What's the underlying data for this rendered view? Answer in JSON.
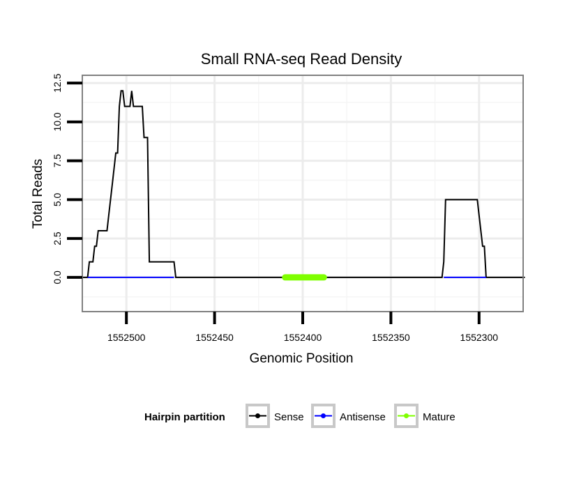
{
  "chart_data": {
    "type": "line",
    "title": "Small RNA-seq Read Density",
    "xlabel": "Genomic Position",
    "ylabel": "Total Reads",
    "xlim": [
      1552525,
      1552275
    ],
    "x_reversed": true,
    "ylim": [
      -2.2,
      13
    ],
    "x_ticks": [
      1552500,
      1552450,
      1552400,
      1552350,
      1552300
    ],
    "x_tick_labels": [
      "1552500",
      "1552450",
      "1552400",
      "1552350",
      "1552300"
    ],
    "y_ticks": [
      0,
      2.5,
      5,
      7.5,
      10,
      12.5
    ],
    "y_tick_labels": [
      "0.0",
      "2.5",
      "5.0",
      "7.5",
      "10.0",
      "12.5"
    ],
    "grid": true,
    "legend": {
      "title": "Hairpin partition",
      "position": "bottom",
      "entries": [
        {
          "label": "Sense",
          "color": "#000000"
        },
        {
          "label": "Antisense",
          "color": "#0000ff"
        },
        {
          "label": "Mature",
          "color": "#7fff00"
        }
      ]
    },
    "series": [
      {
        "name": "Sense",
        "color": "#000000",
        "x": [
          1552525,
          1552522,
          1552521,
          1552519,
          1552518,
          1552517,
          1552516,
          1552515,
          1552511,
          1552510,
          1552508,
          1552507,
          1552506,
          1552505,
          1552504,
          1552503,
          1552502,
          1552501,
          1552500,
          1552499,
          1552498,
          1552497,
          1552496,
          1552495,
          1552494,
          1552493,
          1552492,
          1552491,
          1552490,
          1552488,
          1552487,
          1552486,
          1552485,
          1552484,
          1552473,
          1552472,
          1552412,
          1552388,
          1552321,
          1552320,
          1552319,
          1552301,
          1552300,
          1552298,
          1552297,
          1552296,
          1552274
        ],
        "values": [
          0,
          0,
          1,
          1,
          2,
          2,
          3,
          3,
          3,
          4,
          6,
          7,
          8,
          8,
          11,
          12,
          12,
          11,
          11,
          11,
          11,
          12,
          11,
          11,
          11,
          11,
          11,
          11,
          9,
          9,
          1,
          1,
          1,
          1,
          1,
          0,
          0,
          0,
          0,
          1,
          5,
          5,
          4,
          2,
          2,
          0,
          0
        ]
      },
      {
        "name": "Antisense",
        "color": "#0000ff",
        "x": [
          1552522,
          1552473,
          1552320,
          1552296
        ],
        "values": [
          0,
          0,
          0,
          0
        ],
        "segments": [
          [
            1552522,
            1552473
          ],
          [
            1552320,
            1552296
          ]
        ]
      },
      {
        "name": "Mature",
        "color": "#7fff00",
        "x": [
          1552410,
          1552388
        ],
        "values": [
          0,
          0
        ]
      }
    ]
  }
}
